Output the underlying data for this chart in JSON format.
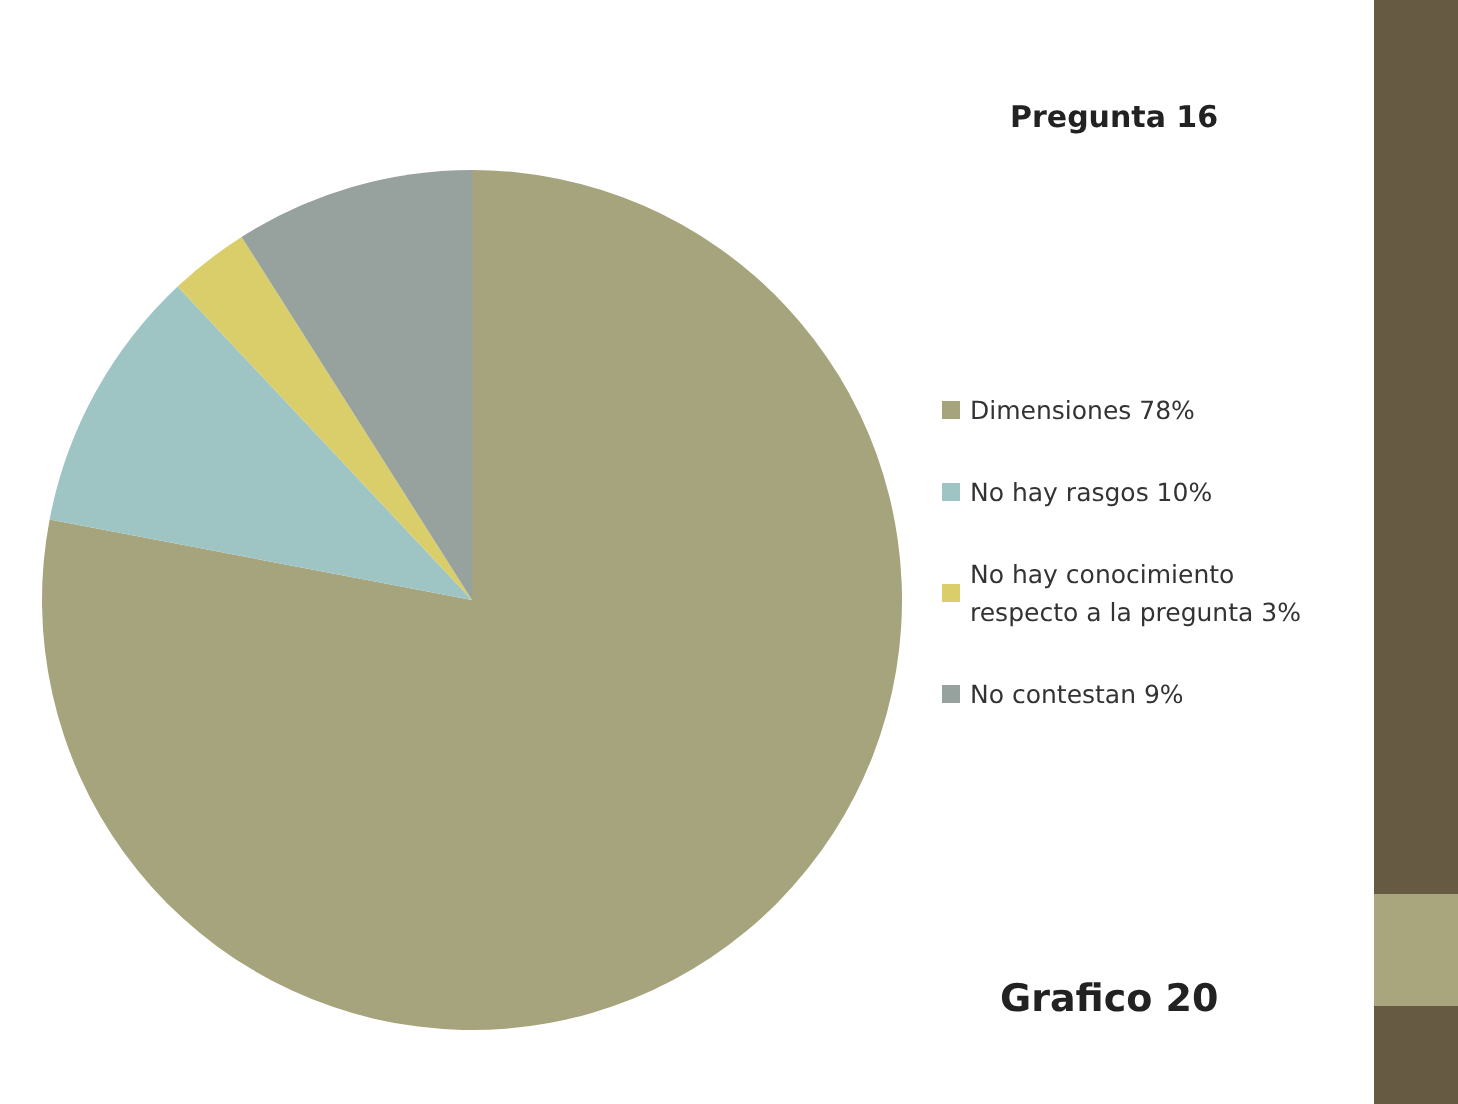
{
  "chart_data": {
    "type": "pie",
    "title": "Pregunta 16",
    "categories": [
      "Dimensiones 78%",
      "No hay rasgos 10%",
      "No hay conocimiento respecto a la pregunta 3%",
      "No contestan 9%"
    ],
    "values": [
      78,
      10,
      3,
      9
    ],
    "colors": [
      "#a6a47c",
      "#9fc4c4",
      "#d9ce6a",
      "#97a19e"
    ],
    "legend": "right",
    "annotations": [
      "Grafico 20"
    ]
  }
}
